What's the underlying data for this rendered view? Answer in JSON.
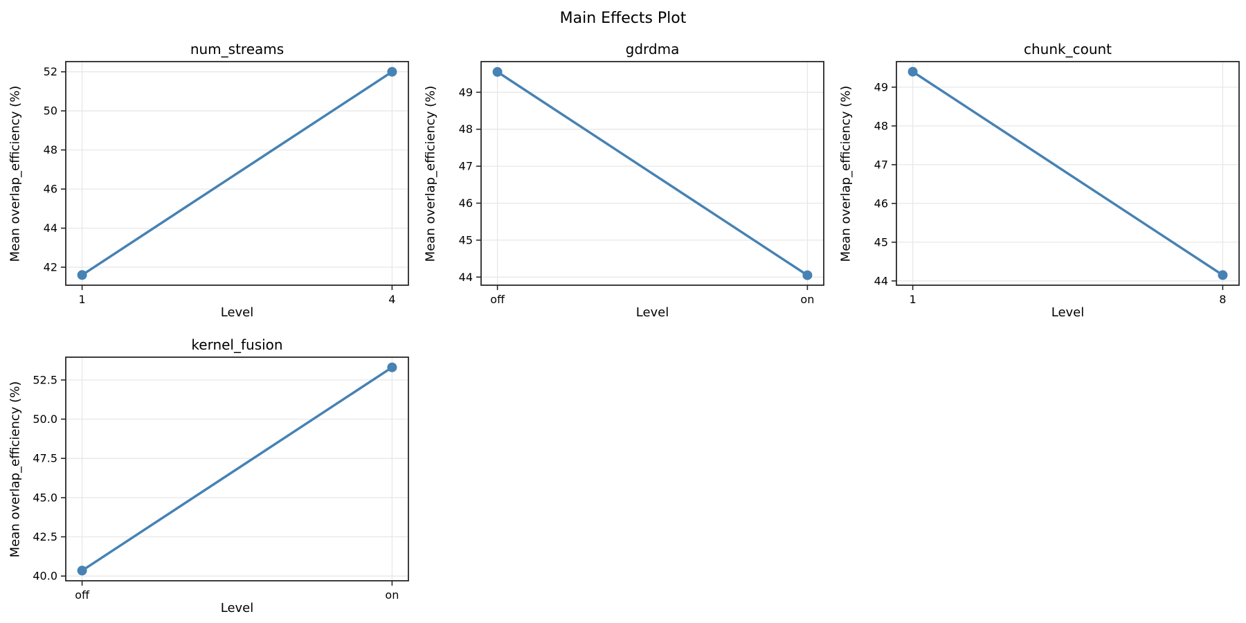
{
  "figure": {
    "title": "Main Effects Plot",
    "background": "#ffffff"
  },
  "style": {
    "line_color": "#4682B4",
    "marker_color": "#4682B4",
    "grid_color": "#e7e7e7",
    "spine_color": "#262626",
    "tick_color": "#262626",
    "text_color": "#000000"
  },
  "chart_data": [
    {
      "type": "line",
      "title": "num_streams",
      "xlabel": "Level",
      "ylabel": "Mean overlap_efficiency (%)",
      "categories": [
        "1",
        "4"
      ],
      "values": [
        41.6,
        52.0
      ],
      "ylim": [
        41.08,
        52.52
      ],
      "yticks": [
        42,
        44,
        46,
        48,
        50,
        52
      ],
      "ytick_labels": [
        "42",
        "44",
        "46",
        "48",
        "50",
        "52"
      ],
      "grid": true,
      "legend_position": "none"
    },
    {
      "type": "line",
      "title": "gdrdma",
      "xlabel": "Level",
      "ylabel": "Mean overlap_efficiency (%)",
      "categories": [
        "off",
        "on"
      ],
      "values": [
        49.55,
        44.05
      ],
      "ylim": [
        43.78,
        49.83
      ],
      "yticks": [
        44,
        45,
        46,
        47,
        48,
        49
      ],
      "ytick_labels": [
        "44",
        "45",
        "46",
        "47",
        "48",
        "49"
      ],
      "grid": true,
      "legend_position": "none"
    },
    {
      "type": "line",
      "title": "chunk_count",
      "xlabel": "Level",
      "ylabel": "Mean overlap_efficiency (%)",
      "categories": [
        "1",
        "8"
      ],
      "values": [
        49.4,
        44.15
      ],
      "ylim": [
        43.89,
        49.66
      ],
      "yticks": [
        44,
        45,
        46,
        47,
        48,
        49
      ],
      "ytick_labels": [
        "44",
        "45",
        "46",
        "47",
        "48",
        "49"
      ],
      "grid": true,
      "legend_position": "none"
    },
    {
      "type": "line",
      "title": "kernel_fusion",
      "xlabel": "Level",
      "ylabel": "Mean overlap_efficiency (%)",
      "categories": [
        "off",
        "on"
      ],
      "values": [
        40.35,
        53.3
      ],
      "ylim": [
        39.7,
        53.95
      ],
      "yticks": [
        40.0,
        42.5,
        45.0,
        47.5,
        50.0,
        52.5
      ],
      "ytick_labels": [
        "40.0",
        "42.5",
        "45.0",
        "47.5",
        "50.0",
        "52.5"
      ],
      "grid": true,
      "legend_position": "none"
    }
  ]
}
